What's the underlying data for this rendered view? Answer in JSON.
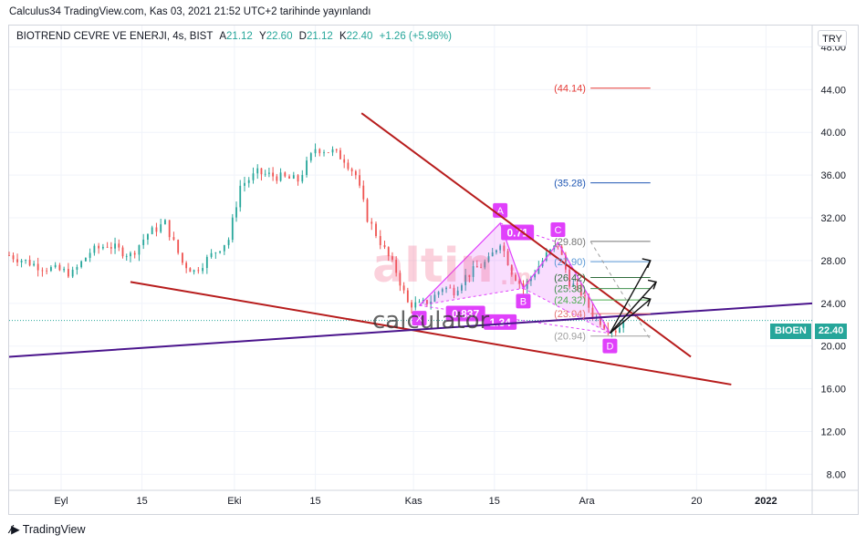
{
  "header": {
    "publish_line": "Calculus34 TradingView.com, Kas 03, 2021 21:52 UTC+2 tarihinde yayınlandı"
  },
  "legend": {
    "symbol": "BIOTREND CEVRE VE ENERJI, 4s, BIST",
    "open_label": "A",
    "open": "21.12",
    "high_label": "Y",
    "high": "22.60",
    "low_label": "D",
    "low": "21.12",
    "close_label": "K",
    "close": "22.40",
    "change": "+1.26 (+5.96%)"
  },
  "currency_button": "TRY",
  "price_tag": {
    "symbol": "BIOEN",
    "value": "22.40"
  },
  "footer": {
    "brand": "TradingView"
  },
  "watermark": {
    "text1": "altin",
    "text2": ".in",
    "text3": "calculator"
  },
  "colors": {
    "up": "#26a69a",
    "down": "#ef5350",
    "pattern": "#e040fb",
    "trend_red": "#b71c1c",
    "trend_purple": "#4a148c"
  },
  "chart_data": {
    "type": "candlestick",
    "ylim": [
      6.5,
      50
    ],
    "y_ticks": [
      8,
      12,
      16,
      20,
      24,
      28,
      32,
      36,
      40,
      44,
      48
    ],
    "y_tick_labels": [
      "8.00",
      "12.00",
      "16.00",
      "20.00",
      "24.00",
      "28.00",
      "32.00",
      "36.00",
      "40.00",
      "44.00",
      "48.00"
    ],
    "x_axis": {
      "start": "2021-08-23",
      "end": "2022-01-09",
      "tick_labels": [
        {
          "date": "2021-09-01",
          "label": "Eyl"
        },
        {
          "date": "2021-09-15",
          "label": "15"
        },
        {
          "date": "2021-10-01",
          "label": "Eki"
        },
        {
          "date": "2021-10-15",
          "label": "15"
        },
        {
          "date": "2021-11-01",
          "label": "Kas"
        },
        {
          "date": "2021-11-15",
          "label": "15"
        },
        {
          "date": "2021-12-01",
          "label": "Ara"
        },
        {
          "date": "2021-12-20",
          "label": "20"
        },
        {
          "date": "2022-01-01",
          "label": "2022"
        }
      ]
    },
    "price_path": [
      {
        "date": "2021-08-23",
        "price": 28.5
      },
      {
        "date": "2021-08-28",
        "price": 27.5
      },
      {
        "date": "2021-09-03",
        "price": 26.8
      },
      {
        "date": "2021-09-06",
        "price": 28.8
      },
      {
        "date": "2021-09-09",
        "price": 29.5
      },
      {
        "date": "2021-09-13",
        "price": 28.5
      },
      {
        "date": "2021-09-16",
        "price": 30.5
      },
      {
        "date": "2021-09-19",
        "price": 31.5
      },
      {
        "date": "2021-09-22",
        "price": 27.8
      },
      {
        "date": "2021-09-24",
        "price": 27.0
      },
      {
        "date": "2021-09-27",
        "price": 28.5
      },
      {
        "date": "2021-09-30",
        "price": 30.0
      },
      {
        "date": "2021-10-02",
        "price": 35.0
      },
      {
        "date": "2021-10-05",
        "price": 36.2
      },
      {
        "date": "2021-10-09",
        "price": 35.8
      },
      {
        "date": "2021-10-12",
        "price": 35.5
      },
      {
        "date": "2021-10-15",
        "price": 38.5
      },
      {
        "date": "2021-10-18",
        "price": 38.2
      },
      {
        "date": "2021-10-20",
        "price": 37.5
      },
      {
        "date": "2021-10-22",
        "price": 36.0
      },
      {
        "date": "2021-10-24",
        "price": 32.0
      },
      {
        "date": "2021-10-27",
        "price": 29.0
      },
      {
        "date": "2021-10-29",
        "price": 27.0
      },
      {
        "date": "2021-10-31",
        "price": 24.0
      },
      {
        "date": "2021-11-02",
        "price": 23.8
      },
      {
        "date": "2021-11-04",
        "price": 24.3
      },
      {
        "date": "2021-11-06",
        "price": 25.5
      },
      {
        "date": "2021-11-08",
        "price": 25.2
      },
      {
        "date": "2021-11-10",
        "price": 26.5
      },
      {
        "date": "2021-11-12",
        "price": 27.3
      },
      {
        "date": "2021-11-14",
        "price": 28.0
      },
      {
        "date": "2021-11-16",
        "price": 29.8
      },
      {
        "date": "2021-11-18",
        "price": 27.0
      },
      {
        "date": "2021-11-20",
        "price": 25.4
      },
      {
        "date": "2021-11-22",
        "price": 27.0
      },
      {
        "date": "2021-11-24",
        "price": 28.5
      },
      {
        "date": "2021-11-26",
        "price": 29.5
      },
      {
        "date": "2021-11-28",
        "price": 26.0
      },
      {
        "date": "2021-11-30",
        "price": 25.0
      },
      {
        "date": "2021-12-02",
        "price": 23.0
      },
      {
        "date": "2021-12-04",
        "price": 22.0
      },
      {
        "date": "2021-12-06",
        "price": 21.5
      },
      {
        "date": "2021-12-08",
        "price": 22.4
      }
    ],
    "xabcd_pattern": {
      "points": [
        {
          "label": "X",
          "date": "2021-11-02",
          "price": 23.8
        },
        {
          "label": "A",
          "date": "2021-11-16",
          "price": 31.5
        },
        {
          "label": "B",
          "date": "2021-11-20",
          "price": 25.4
        },
        {
          "label": "C",
          "date": "2021-11-26",
          "price": 29.7
        },
        {
          "label": "D",
          "date": "2021-12-05",
          "price": 21.2
        }
      ],
      "ratios": [
        {
          "text": "0.837",
          "date": "2021-11-10",
          "price": 23.0
        },
        {
          "text": "0.71",
          "date": "2021-11-19",
          "price": 30.6
        },
        {
          "text": "1.34",
          "date": "2021-11-16",
          "price": 22.2
        }
      ]
    },
    "fib_levels": [
      {
        "value": 44.14,
        "label": "(44.14)",
        "color": "#e53935"
      },
      {
        "value": 35.28,
        "label": "(35.28)",
        "color": "#1e56b3"
      },
      {
        "value": 29.8,
        "label": "(29.80)",
        "color": "#757575"
      },
      {
        "value": 27.9,
        "label": "(27.90)",
        "color": "#5c9ad6"
      },
      {
        "value": 26.42,
        "label": "(26.42)",
        "color": "#2e6b3a"
      },
      {
        "value": 25.38,
        "label": "(25.38)",
        "color": "#3f8f4c"
      },
      {
        "value": 24.32,
        "label": "(24.32)",
        "color": "#4caf50"
      },
      {
        "value": 23.04,
        "label": "(23.04)",
        "color": "#e57373"
      },
      {
        "value": 20.94,
        "label": "(20.94)",
        "color": "#9e9e9e"
      }
    ],
    "trendlines": [
      {
        "name": "resistance",
        "from": {
          "date": "2021-10-23",
          "price": 41.8
        },
        "to": {
          "date": "2021-12-19",
          "price": 19.0
        },
        "color": "#b71c1c"
      },
      {
        "name": "support",
        "from": {
          "date": "2021-09-13",
          "price": 26.0
        },
        "to": {
          "date": "2021-12-26",
          "price": 16.4
        },
        "color": "#b71c1c"
      },
      {
        "name": "long-support",
        "from": {
          "date": "2021-08-23",
          "price": 19.0
        },
        "to": {
          "date": "2022-01-09",
          "price": 24.0
        },
        "color": "#4a148c"
      }
    ],
    "last_price": 22.4
  }
}
